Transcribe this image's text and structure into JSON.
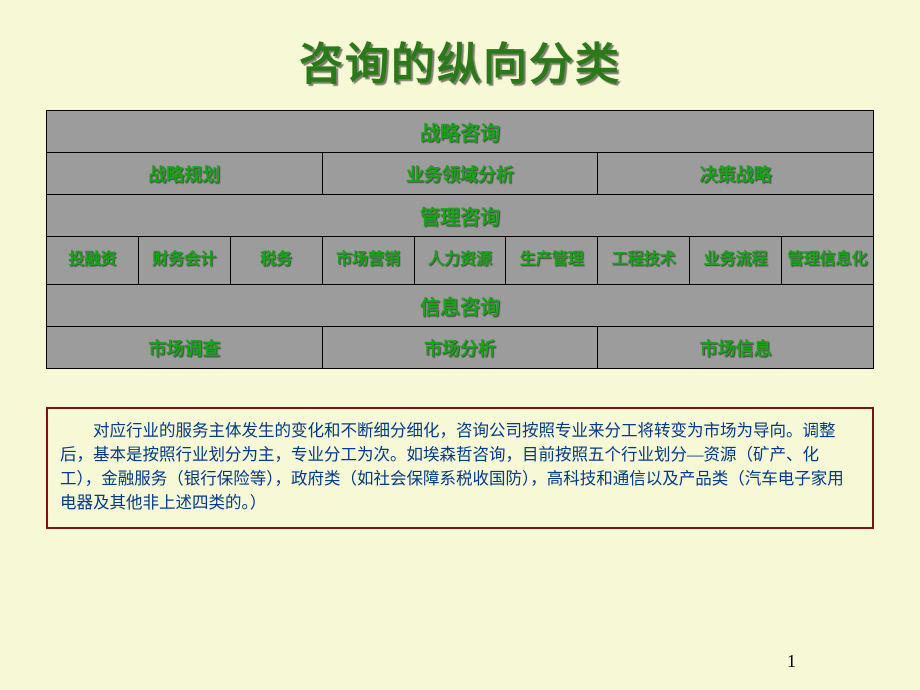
{
  "title": "咨询的纵向分类",
  "table": {
    "r1": "战略咨询",
    "r2": [
      "战略规划",
      "业务领域分析",
      "决策战略"
    ],
    "r3": "管理咨询",
    "r4": [
      "投融资",
      "财务会计",
      "税务",
      "市场营销",
      "人力资源",
      "生产管理",
      "工程技术",
      "业务流程",
      "管理信息化"
    ],
    "r5": "信息咨询",
    "r6": [
      "市场调查",
      "市场分析",
      "市场信息"
    ]
  },
  "note": "对应行业的服务主体发生的变化和不断细分细化，咨询公司按照专业来分工将转变为市场为导向。调整后，基本是按照行业划分为主，专业分工为次。如埃森哲咨询，目前按照五个行业划分—资源（矿产、化工），金融服务（银行保险等），政府类（如社会保障系税收国防），高科技和通信以及产品类（汽车电子家用电器及其他非上述四类的。）",
  "pageNumber": "1",
  "colors": {
    "background": "#f6f8d6",
    "cell_bg": "#9c9c9c",
    "cell_text": "#1aa31a",
    "title_text": "#2a7a1a",
    "note_border": "#7a1212",
    "note_text": "#003a8c"
  }
}
